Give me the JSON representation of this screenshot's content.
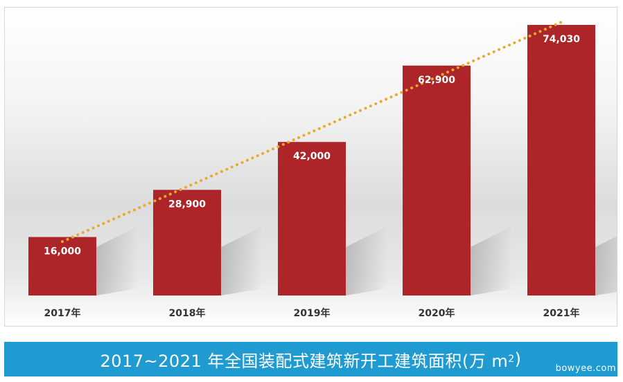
{
  "chart_data": {
    "type": "bar",
    "categories": [
      "2017年",
      "2018年",
      "2019年",
      "2020年",
      "2021年"
    ],
    "values": [
      16000,
      28900,
      42000,
      62900,
      74030
    ],
    "data_labels": [
      "16,000",
      "28,900",
      "42,000",
      "62,900",
      "74,030"
    ],
    "title": "",
    "xlabel": "",
    "ylabel": "",
    "ylim": [
      0,
      78000
    ],
    "trendline": "dotted",
    "grid": false
  },
  "colors": {
    "bar": "#ad2429",
    "trend": "#eba92b",
    "caption_bg": "#1f9bd1"
  },
  "caption": {
    "text": "2017~2021 年全国装配式建筑新开工建筑面积(万 m",
    "superscript": "2",
    "close": ")"
  },
  "watermark": "bowyee.com"
}
